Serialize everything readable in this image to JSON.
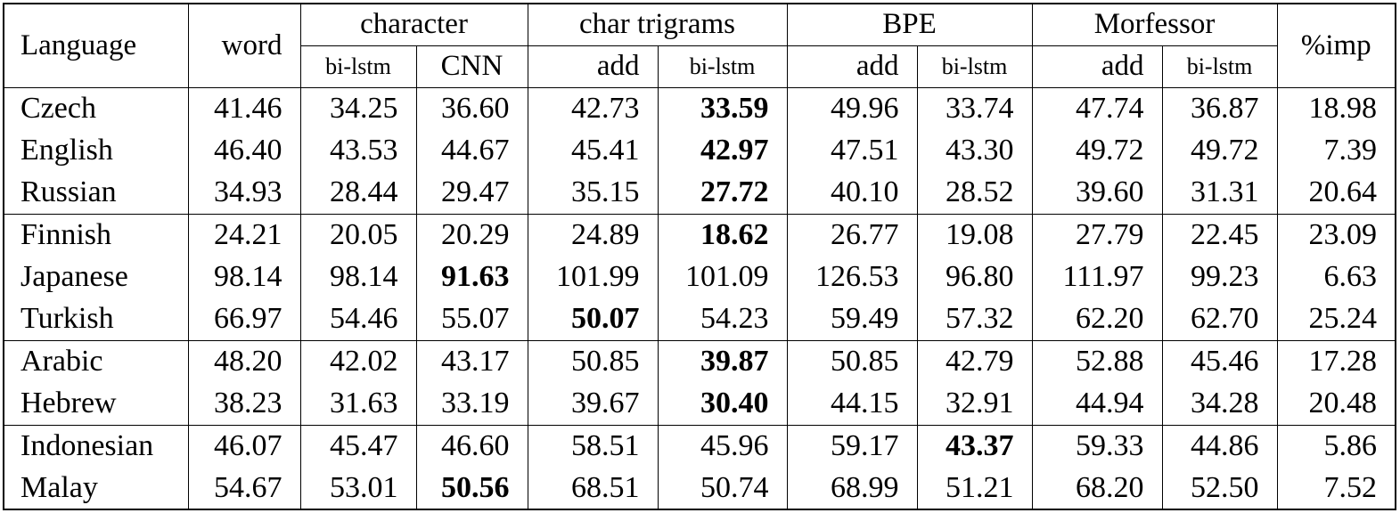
{
  "table": {
    "header": {
      "language": "Language",
      "word": "word",
      "groups": [
        {
          "label": "character",
          "sub": [
            "bi-lstm",
            "CNN"
          ]
        },
        {
          "label": "char trigrams",
          "sub": [
            "add",
            "bi-lstm"
          ]
        },
        {
          "label": "BPE",
          "sub": [
            "add",
            "bi-lstm"
          ]
        },
        {
          "label": "Morfessor",
          "sub": [
            "add",
            "bi-lstm"
          ]
        }
      ],
      "imp": "%imp"
    },
    "row_groups": [
      [
        {
          "language": "Czech",
          "values": [
            "41.46",
            "34.25",
            "36.60",
            "42.73",
            "33.59",
            "49.96",
            "33.74",
            "47.74",
            "36.87",
            "18.98"
          ],
          "bold": 4
        },
        {
          "language": "English",
          "values": [
            "46.40",
            "43.53",
            "44.67",
            "45.41",
            "42.97",
            "47.51",
            "43.30",
            "49.72",
            "49.72",
            "7.39"
          ],
          "bold": 4
        },
        {
          "language": "Russian",
          "values": [
            "34.93",
            "28.44",
            "29.47",
            "35.15",
            "27.72",
            "40.10",
            "28.52",
            "39.60",
            "31.31",
            "20.64"
          ],
          "bold": 4
        }
      ],
      [
        {
          "language": "Finnish",
          "values": [
            "24.21",
            "20.05",
            "20.29",
            "24.89",
            "18.62",
            "26.77",
            "19.08",
            "27.79",
            "22.45",
            "23.09"
          ],
          "bold": 4
        },
        {
          "language": "Japanese",
          "values": [
            "98.14",
            "98.14",
            "91.63",
            "101.99",
            "101.09",
            "126.53",
            "96.80",
            "111.97",
            "99.23",
            "6.63"
          ],
          "bold": 2
        },
        {
          "language": "Turkish",
          "values": [
            "66.97",
            "54.46",
            "55.07",
            "50.07",
            "54.23",
            "59.49",
            "57.32",
            "62.20",
            "62.70",
            "25.24"
          ],
          "bold": 3
        }
      ],
      [
        {
          "language": "Arabic",
          "values": [
            "48.20",
            "42.02",
            "43.17",
            "50.85",
            "39.87",
            "50.85",
            "42.79",
            "52.88",
            "45.46",
            "17.28"
          ],
          "bold": 4
        },
        {
          "language": "Hebrew",
          "values": [
            "38.23",
            "31.63",
            "33.19",
            "39.67",
            "30.40",
            "44.15",
            "32.91",
            "44.94",
            "34.28",
            "20.48"
          ],
          "bold": 4
        }
      ],
      [
        {
          "language": "Indonesian",
          "values": [
            "46.07",
            "45.47",
            "46.60",
            "58.51",
            "45.96",
            "59.17",
            "43.37",
            "59.33",
            "44.86",
            "5.86"
          ],
          "bold": 6
        },
        {
          "language": "Malay",
          "values": [
            "54.67",
            "53.01",
            "50.56",
            "68.51",
            "50.74",
            "68.99",
            "51.21",
            "68.20",
            "52.50",
            "7.52"
          ],
          "bold": 2
        }
      ]
    ]
  }
}
